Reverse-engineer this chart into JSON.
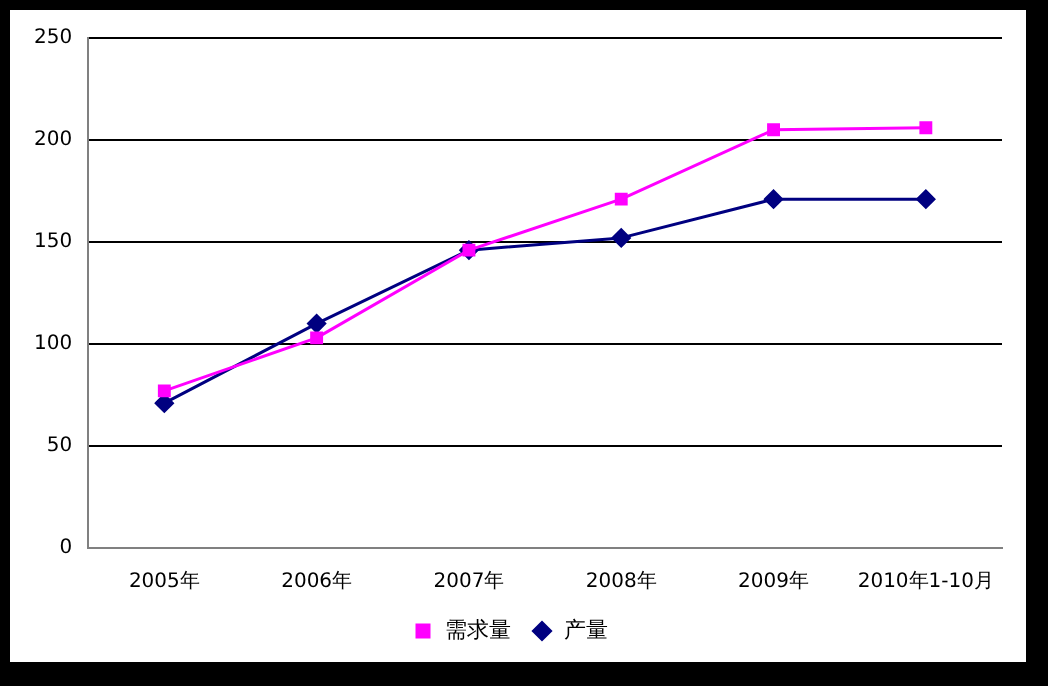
{
  "chart_data": {
    "type": "line",
    "categories": [
      "2005年",
      "2006年",
      "2007年",
      "2008年",
      "2009年",
      "2010年1-10月"
    ],
    "series": [
      {
        "name": "产量",
        "color": "#000080",
        "marker": "diamond",
        "values": [
          71,
          110,
          146,
          152,
          171,
          171
        ]
      },
      {
        "name": "需求量",
        "color": "#ff00ff",
        "marker": "square",
        "values": [
          77,
          103,
          146,
          171,
          205,
          206
        ]
      }
    ],
    "ylim": [
      0,
      250
    ],
    "yticks": [
      0,
      50,
      100,
      150,
      200,
      250
    ],
    "grid": "y",
    "legend": "bottom",
    "line_style": "solid"
  }
}
